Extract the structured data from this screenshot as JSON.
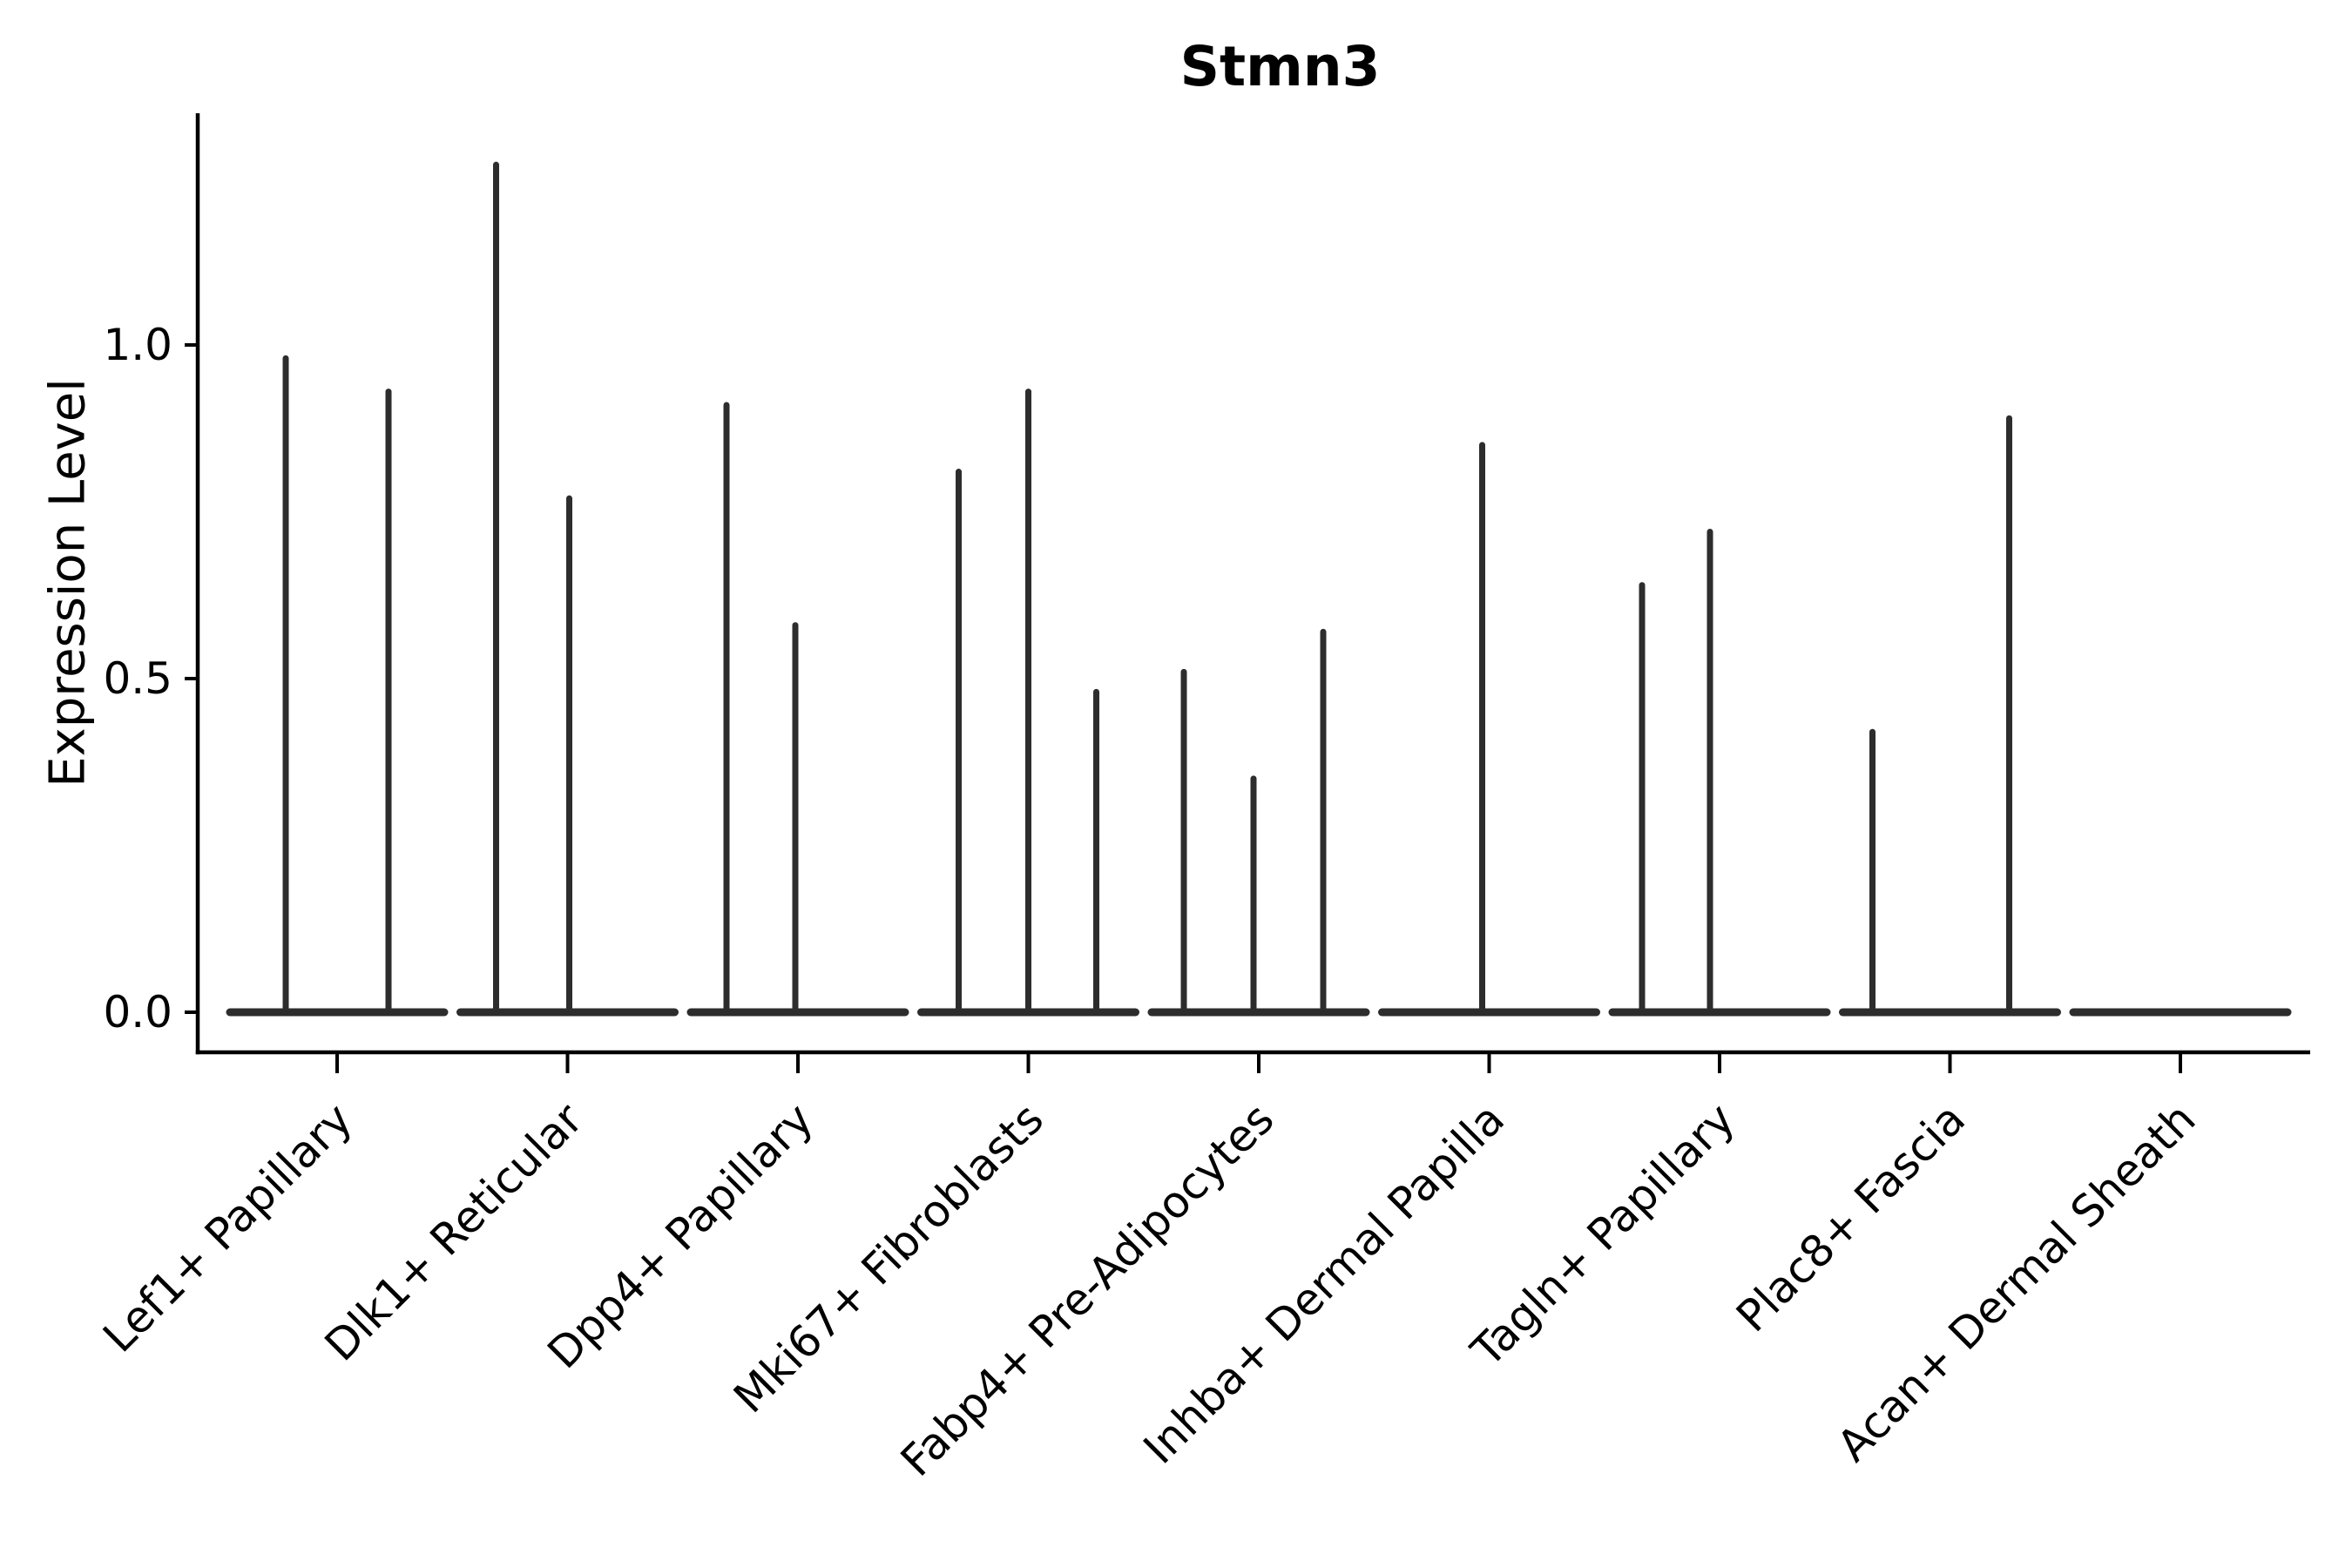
{
  "chart_data": {
    "type": "violin",
    "title": "Stmn3",
    "ylabel": "Expression Level",
    "xlabel": "",
    "legend": "none",
    "grid": false,
    "yticks": [
      "0.0",
      "0.5",
      "1.0"
    ],
    "ytick_values": [
      0.0,
      0.5,
      1.0
    ],
    "ylim": [
      -0.06,
      1.345
    ],
    "categories": [
      "Lef1+ Papillary",
      "Dlk1+ Reticular",
      "Dpp4+ Papillary",
      "Mki67+ Fibroblasts",
      "Fabp4+ Pre-Adipocytes",
      "Inhba+ Dermal Papilla",
      "Tagln+ Papillary",
      "Plac8+ Fascia",
      "Acan+ Dermal Sheath"
    ],
    "violins": [
      {
        "category": "Lef1+ Papillary",
        "baseline_value": 0.0,
        "spikes": [
          {
            "x_offset": -59,
            "height": 0.98
          },
          {
            "x_offset": 59,
            "height": 0.93
          }
        ]
      },
      {
        "category": "Dlk1+ Reticular",
        "baseline_value": 0.0,
        "spikes": [
          {
            "x_offset": -82,
            "height": 1.27
          },
          {
            "x_offset": 2,
            "height": 0.77
          }
        ]
      },
      {
        "category": "Dpp4+ Papillary",
        "baseline_value": 0.0,
        "spikes": [
          {
            "x_offset": -82,
            "height": 0.91
          },
          {
            "x_offset": -3,
            "height": 0.58
          }
        ]
      },
      {
        "category": "Mki67+ Fibroblasts",
        "baseline_value": 0.0,
        "spikes": [
          {
            "x_offset": -80,
            "height": 0.81
          },
          {
            "x_offset": 0,
            "height": 0.93
          },
          {
            "x_offset": 78,
            "height": 0.48
          }
        ]
      },
      {
        "category": "Fabp4+ Pre-Adipocytes",
        "baseline_value": 0.0,
        "spikes": [
          {
            "x_offset": -86,
            "height": 0.51
          },
          {
            "x_offset": -6,
            "height": 0.35
          },
          {
            "x_offset": 74,
            "height": 0.57
          }
        ]
      },
      {
        "category": "Inhba+ Dermal Papilla",
        "baseline_value": 0.0,
        "spikes": [
          {
            "x_offset": -8,
            "height": 0.85
          }
        ]
      },
      {
        "category": "Tagln+ Papillary",
        "baseline_value": 0.0,
        "spikes": [
          {
            "x_offset": -89,
            "height": 0.64
          },
          {
            "x_offset": -11,
            "height": 0.72
          }
        ]
      },
      {
        "category": "Plac8+ Fascia",
        "baseline_value": 0.0,
        "spikes": [
          {
            "x_offset": -89,
            "height": 0.42
          },
          {
            "x_offset": 68,
            "height": 0.89
          }
        ]
      },
      {
        "category": "Acan+ Dermal Sheath",
        "baseline_value": 0.0,
        "spikes": []
      }
    ],
    "colors": {
      "violin": "#2d2d2d",
      "axis": "#000000",
      "background": "#ffffff"
    }
  }
}
